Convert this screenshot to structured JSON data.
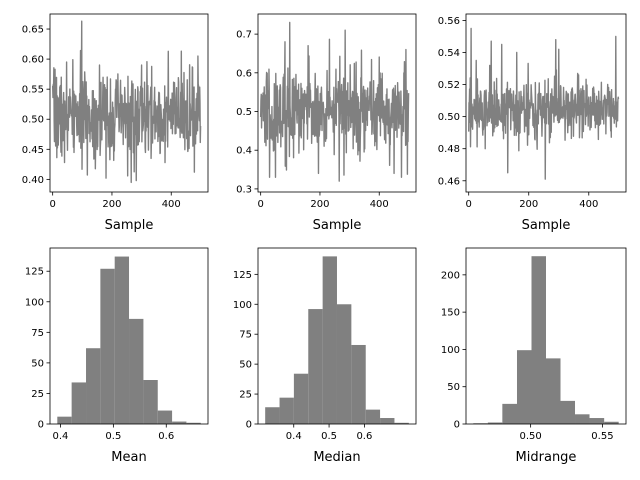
{
  "chart_data": [
    {
      "type": "line",
      "title": "",
      "xlabel": "Sample",
      "ylabel": "",
      "xlim": [
        -9,
        524
      ],
      "ylim": [
        0.379,
        0.675
      ],
      "xticks": [
        0,
        200,
        400
      ],
      "xtick_labels": [
        "0",
        "200",
        "400"
      ],
      "yticks": [
        0.4,
        0.45,
        0.5,
        0.55,
        0.6,
        0.65
      ],
      "ytick_labels": [
        "0.40",
        "0.45",
        "0.50",
        "0.55",
        "0.60",
        "0.65"
      ],
      "color": "#808080",
      "series": [
        {
          "n": 500,
          "base": 0.505,
          "noise": 0.035,
          "spikes": [
            [
              98,
              0.663
            ],
            [
              8,
              0.583
            ],
            [
              47,
              0.595
            ],
            [
              158,
              0.59
            ],
            [
              300,
              0.59
            ],
            [
              490,
              0.605
            ],
            [
              180,
              0.402
            ],
            [
              265,
              0.395
            ],
            [
              282,
              0.398
            ],
            [
              478,
              0.412
            ],
            [
              40,
              0.428
            ]
          ]
        }
      ],
      "grid": false
    },
    {
      "type": "line",
      "title": "",
      "xlabel": "Sample",
      "ylabel": "",
      "xlim": [
        -9,
        524
      ],
      "ylim": [
        0.292,
        0.752
      ],
      "xticks": [
        0,
        200,
        400
      ],
      "xtick_labels": [
        "0",
        "200",
        "400"
      ],
      "yticks": [
        0.3,
        0.4,
        0.5,
        0.6,
        0.7
      ],
      "ytick_labels": [
        "0.3",
        "0.4",
        "0.5",
        "0.6",
        "0.7"
      ],
      "color": "#808080",
      "series": [
        {
          "n": 500,
          "base": 0.5,
          "noise": 0.055,
          "spikes": [
            [
              98,
              0.73
            ],
            [
              82,
              0.68
            ],
            [
              160,
              0.67
            ],
            [
              285,
              0.71
            ],
            [
              490,
              0.66
            ],
            [
              30,
              0.33
            ],
            [
              50,
              0.33
            ],
            [
              195,
              0.34
            ],
            [
              265,
              0.32
            ],
            [
              450,
              0.34
            ],
            [
              475,
              0.33
            ]
          ]
        }
      ],
      "grid": false
    },
    {
      "type": "line",
      "title": "",
      "xlabel": "Sample",
      "ylabel": "",
      "xlim": [
        -9,
        524
      ],
      "ylim": [
        0.453,
        0.564
      ],
      "xticks": [
        0,
        200,
        400
      ],
      "xtick_labels": [
        "0",
        "200",
        "400"
      ],
      "yticks": [
        0.46,
        0.48,
        0.5,
        0.52,
        0.54,
        0.56
      ],
      "ytick_labels": [
        "0.46",
        "0.48",
        "0.50",
        "0.52",
        "0.54",
        "0.56"
      ],
      "color": "#808080",
      "series": [
        {
          "n": 500,
          "base": 0.505,
          "noise": 0.009,
          "spikes": [
            [
              8,
              0.555
            ],
            [
              25,
              0.535
            ],
            [
              75,
              0.547
            ],
            [
              110,
              0.545
            ],
            [
              160,
              0.54
            ],
            [
              290,
              0.548
            ],
            [
              300,
              0.542
            ],
            [
              490,
              0.55
            ],
            [
              130,
              0.465
            ],
            [
              255,
              0.461
            ],
            [
              55,
              0.48
            ]
          ]
        }
      ],
      "grid": false
    },
    {
      "type": "bar",
      "title": "",
      "xlabel": "Mean",
      "ylabel": "",
      "xlim": [
        0.3802,
        0.6789
      ],
      "ylim": [
        0,
        144
      ],
      "xticks": [
        0.4,
        0.5,
        0.6
      ],
      "xtick_labels": [
        "0.4",
        "0.5",
        "0.6"
      ],
      "yticks": [
        0,
        25,
        50,
        75,
        100,
        125
      ],
      "ytick_labels": [
        "0",
        "25",
        "50",
        "75",
        "100",
        "125"
      ],
      "color": "#808080",
      "bin_edges": [
        0.394,
        0.4211,
        0.4483,
        0.4754,
        0.5025,
        0.5296,
        0.5568,
        0.5839,
        0.611,
        0.6381,
        0.6652
      ],
      "values": [
        6,
        34,
        62,
        127,
        137,
        86,
        36,
        11,
        2,
        1
      ],
      "grid": false
    },
    {
      "type": "bar",
      "title": "",
      "xlabel": "Median",
      "ylabel": "",
      "xlim": [
        0.2988,
        0.7461
      ],
      "ylim": [
        0,
        147
      ],
      "xticks": [
        0.4,
        0.5,
        0.6
      ],
      "xtick_labels": [
        "0.4",
        "0.5",
        "0.6"
      ],
      "yticks": [
        0,
        25,
        50,
        75,
        100,
        125
      ],
      "ytick_labels": [
        "0",
        "25",
        "50",
        "75",
        "100",
        "125"
      ],
      "color": "#808080",
      "bin_edges": [
        0.3191,
        0.3598,
        0.4004,
        0.4411,
        0.4818,
        0.5224,
        0.5631,
        0.6038,
        0.6444,
        0.6851,
        0.7258
      ],
      "values": [
        14,
        22,
        42,
        96,
        140,
        100,
        66,
        12,
        5,
        1
      ],
      "grid": false
    },
    {
      "type": "bar",
      "title": "",
      "xlabel": "Midrange",
      "ylabel": "",
      "xlim": [
        0.455,
        0.5664
      ],
      "ylim": [
        0,
        236
      ],
      "xticks": [
        0.5,
        0.55
      ],
      "xtick_labels": [
        "0.50",
        "0.55"
      ],
      "yticks": [
        0,
        50,
        100,
        150,
        200
      ],
      "ytick_labels": [
        "0",
        "50",
        "100",
        "150",
        "200"
      ],
      "color": "#808080",
      "bin_edges": [
        0.4601,
        0.4702,
        0.4803,
        0.4905,
        0.5006,
        0.5107,
        0.5208,
        0.5309,
        0.541,
        0.5512,
        0.5613
      ],
      "values": [
        1,
        2,
        27,
        99,
        225,
        88,
        31,
        13,
        8,
        3
      ],
      "grid": false
    }
  ]
}
